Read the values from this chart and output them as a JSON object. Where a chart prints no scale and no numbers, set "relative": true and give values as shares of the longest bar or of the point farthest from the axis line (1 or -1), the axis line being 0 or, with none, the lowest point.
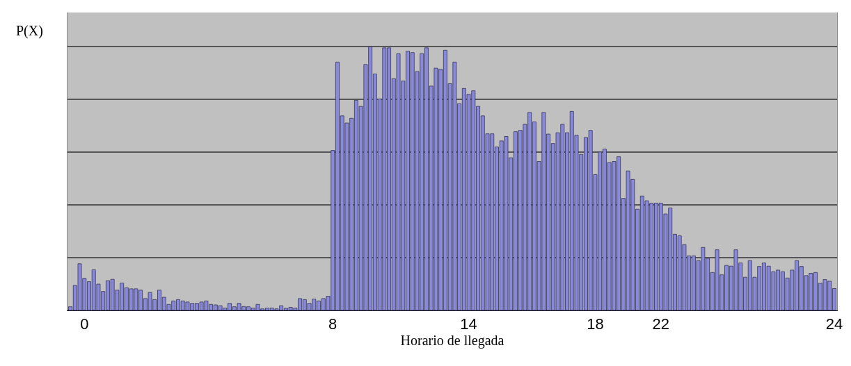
{
  "chart_data": {
    "type": "bar",
    "relative": true,
    "xlabel": "Horario de llegada",
    "ylabel": "P(X)",
    "color": "#8888dd",
    "grid": "y",
    "categories": [
      null,
      null,
      null,
      "0",
      null,
      null,
      null,
      null,
      null,
      null,
      null,
      null,
      null,
      null,
      null,
      null,
      null,
      null,
      null,
      null,
      null,
      null,
      null,
      null,
      null,
      null,
      null,
      null,
      null,
      null,
      null,
      null,
      null,
      null,
      null,
      null,
      null,
      null,
      null,
      null,
      null,
      null,
      null,
      null,
      null,
      null,
      null,
      null,
      null,
      null,
      null,
      null,
      null,
      null,
      null,
      null,
      "8",
      null,
      null,
      null,
      null,
      null,
      null,
      null,
      null,
      null,
      null,
      null,
      null,
      null,
      null,
      null,
      null,
      null,
      null,
      null,
      null,
      null,
      null,
      null,
      null,
      null,
      null,
      null,
      null,
      "14",
      null,
      null,
      null,
      null,
      null,
      null,
      null,
      null,
      null,
      null,
      null,
      null,
      null,
      null,
      null,
      null,
      null,
      null,
      null,
      null,
      null,
      null,
      null,
      null,
      null,
      null,
      "18",
      null,
      null,
      null,
      null,
      null,
      null,
      null,
      null,
      null,
      null,
      null,
      null,
      null,
      "22",
      null,
      null,
      null,
      null,
      null,
      null,
      null,
      null,
      null,
      null,
      null,
      null,
      null,
      null,
      null,
      null,
      null,
      null,
      null,
      null,
      null,
      null,
      null,
      null,
      null,
      null,
      null,
      null,
      null,
      null,
      null,
      null,
      null,
      null,
      null,
      null,
      "24"
    ],
    "values": [
      0.014,
      0.095,
      0.177,
      0.122,
      0.109,
      0.154,
      0.1,
      0.072,
      0.113,
      0.118,
      0.077,
      0.104,
      0.086,
      0.082,
      0.082,
      0.077,
      0.045,
      0.068,
      0.041,
      0.077,
      0.05,
      0.023,
      0.036,
      0.041,
      0.036,
      0.032,
      0.027,
      0.027,
      0.032,
      0.036,
      0.023,
      0.021,
      0.018,
      0.009,
      0.027,
      0.014,
      0.027,
      0.015,
      0.014,
      0.009,
      0.023,
      0.006,
      0.009,
      0.009,
      0.006,
      0.018,
      0.008,
      0.012,
      0.009,
      0.045,
      0.041,
      0.027,
      0.043,
      0.036,
      0.045,
      0.054,
      0.607,
      0.942,
      0.738,
      0.711,
      0.729,
      0.797,
      0.774,
      0.933,
      1.0,
      0.897,
      0.802,
      0.996,
      0.996,
      0.879,
      0.974,
      0.87,
      0.983,
      0.978,
      0.906,
      0.974,
      0.996,
      0.851,
      0.919,
      0.915,
      0.987,
      0.86,
      0.942,
      0.784,
      0.842,
      0.82,
      0.833,
      0.774,
      0.738,
      0.67,
      0.67,
      0.62,
      0.643,
      0.66,
      0.579,
      0.678,
      0.683,
      0.706,
      0.751,
      0.715,
      0.565,
      0.751,
      0.669,
      0.633,
      0.674,
      0.706,
      0.674,
      0.755,
      0.665,
      0.592,
      0.656,
      0.683,
      0.515,
      0.601,
      0.612,
      0.561,
      0.565,
      0.583,
      0.425,
      0.529,
      0.497,
      0.384,
      0.434,
      0.416,
      0.407,
      0.407,
      0.407,
      0.366,
      0.389,
      0.289,
      0.283,
      0.25,
      0.207,
      0.207,
      0.189,
      0.239,
      0.198,
      0.144,
      0.23,
      0.135,
      0.171,
      0.168,
      0.23,
      0.18,
      0.126,
      0.189,
      0.126,
      0.167,
      0.18,
      0.168,
      0.147,
      0.153,
      0.147,
      0.123,
      0.153,
      0.189,
      0.167,
      0.132,
      0.141,
      0.144,
      0.103,
      0.117,
      0.111,
      0.083
    ]
  }
}
